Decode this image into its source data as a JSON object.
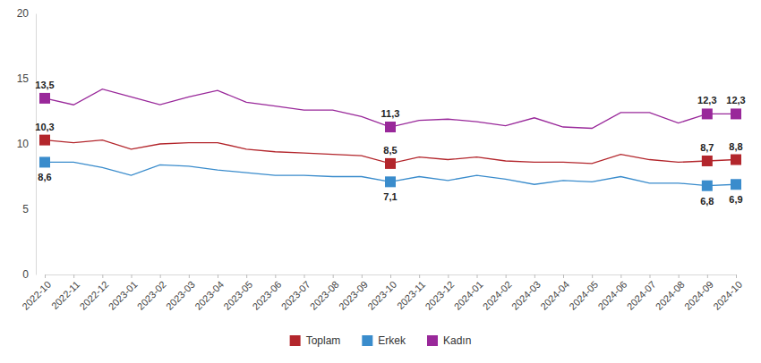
{
  "chart_data": {
    "type": "line",
    "categories": [
      "2022-10",
      "2022-11",
      "2022-12",
      "2023-01",
      "2023-02",
      "2023-03",
      "2023-04",
      "2023-05",
      "2023-06",
      "2023-07",
      "2023-08",
      "2023-09",
      "2023-10",
      "2023-11",
      "2023-12",
      "2024-01",
      "2024-02",
      "2024-03",
      "2024-04",
      "2024-05",
      "2024-06",
      "2024-07",
      "2024-08",
      "2024-09",
      "2024-10"
    ],
    "series": [
      {
        "name": "Toplam",
        "color": "#b3262c",
        "values": [
          10.3,
          10.1,
          10.3,
          9.6,
          10.0,
          10.1,
          10.1,
          9.6,
          9.4,
          9.3,
          9.2,
          9.1,
          8.5,
          9.0,
          8.8,
          9.0,
          8.7,
          8.6,
          8.6,
          8.5,
          9.2,
          8.8,
          8.6,
          8.7,
          8.8
        ],
        "value_labels": [
          "10,3",
          null,
          null,
          null,
          null,
          null,
          null,
          null,
          null,
          null,
          null,
          null,
          "8,5",
          null,
          null,
          null,
          null,
          null,
          null,
          null,
          null,
          null,
          null,
          "8,7",
          "8,8"
        ]
      },
      {
        "name": "Erkek",
        "color": "#3a8ccc",
        "values": [
          8.6,
          8.6,
          8.2,
          7.6,
          8.4,
          8.3,
          8.0,
          7.8,
          7.6,
          7.6,
          7.5,
          7.5,
          7.1,
          7.5,
          7.2,
          7.6,
          7.3,
          6.9,
          7.2,
          7.1,
          7.5,
          7.0,
          7.0,
          6.8,
          6.9
        ],
        "value_labels": [
          "8,6",
          null,
          null,
          null,
          null,
          null,
          null,
          null,
          null,
          null,
          null,
          null,
          "7,1",
          null,
          null,
          null,
          null,
          null,
          null,
          null,
          null,
          null,
          null,
          "6,8",
          "6,9"
        ]
      },
      {
        "name": "Kadın",
        "color": "#99289a",
        "values": [
          13.5,
          13.0,
          14.2,
          13.6,
          13.0,
          13.6,
          14.1,
          13.2,
          12.9,
          12.6,
          12.6,
          12.1,
          11.3,
          11.8,
          11.9,
          11.7,
          11.4,
          12.0,
          11.3,
          11.2,
          12.4,
          12.4,
          11.6,
          12.3,
          12.3
        ],
        "value_labels": [
          "13,5",
          null,
          null,
          null,
          null,
          null,
          null,
          null,
          null,
          null,
          null,
          null,
          "11,3",
          null,
          null,
          null,
          null,
          null,
          null,
          null,
          null,
          null,
          null,
          "12,3",
          "12,3"
        ]
      }
    ],
    "ylim": [
      0,
      20
    ],
    "yticks": [
      0,
      5,
      10,
      15,
      20
    ],
    "grid": false,
    "legend": "bottom",
    "data_labels": true,
    "marker": "square"
  }
}
